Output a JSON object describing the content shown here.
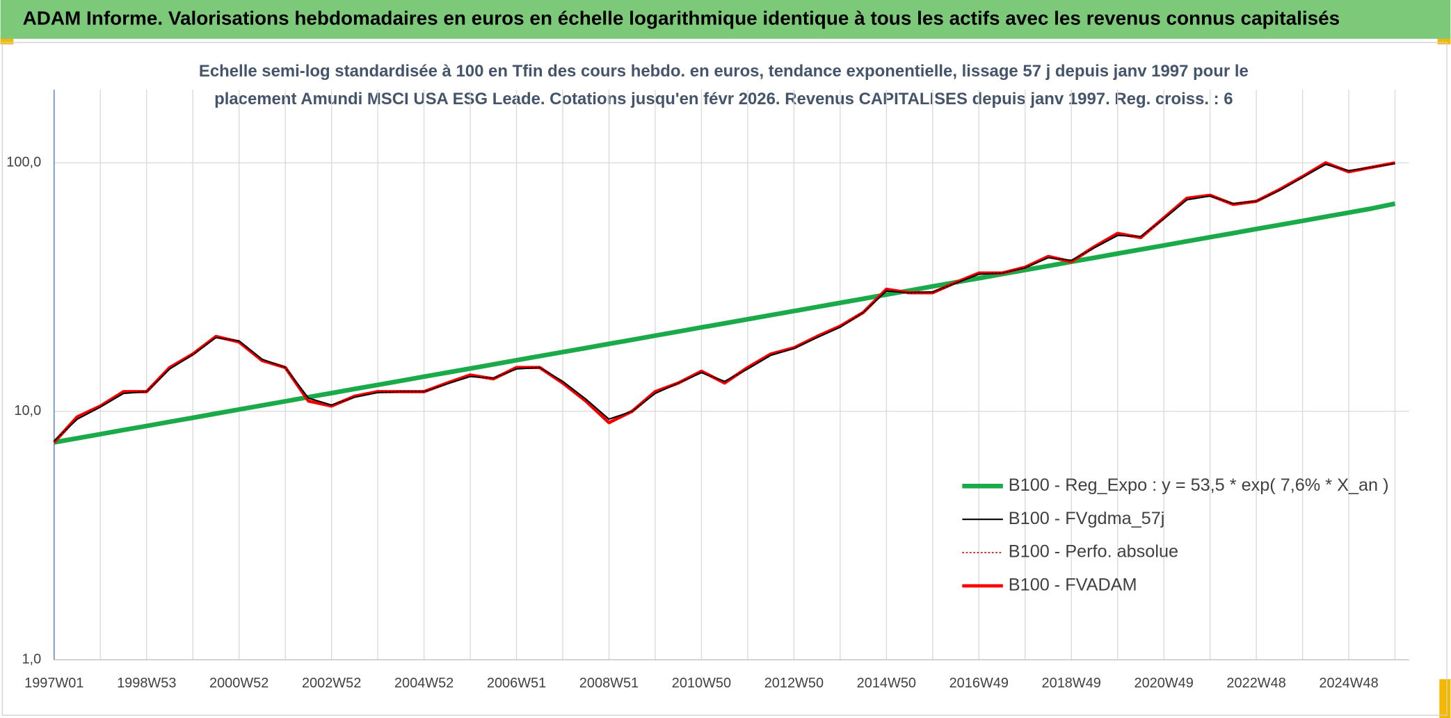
{
  "chart_data": {
    "type": "line",
    "title": "ADAM Informe. Valorisations hebdomadaires en euros en échelle logarithmique identique à tous les actifs avec les revenus connus capitalisés",
    "subtitle": [
      "Echelle semi-log standardisée à 100 en Tfin des cours hebdo. en euros, tendance exponentielle, lissage 57 j depuis janv 1997 pour le",
      "placement Amundi MSCI USA ESG Leade. Cotations jusqu'en févr 2026. Revenus CAPITALISES depuis janv 1997. Reg. croiss. : 6"
    ],
    "categories": [
      "1997W01",
      null,
      null,
      null,
      "1998W53",
      null,
      null,
      null,
      "2000W52",
      null,
      null,
      null,
      "2002W52",
      null,
      null,
      null,
      "2004W52",
      null,
      null,
      null,
      "2006W51",
      null,
      null,
      null,
      "2008W51",
      null,
      null,
      null,
      "2010W50",
      null,
      null,
      null,
      "2012W50",
      null,
      null,
      null,
      "2014W50",
      null,
      null,
      null,
      "2016W49",
      null,
      null,
      null,
      "2018W49",
      null,
      null,
      null,
      "2020W49",
      null,
      null,
      null,
      "2022W48",
      null,
      null,
      null,
      "2024W48",
      null,
      null
    ],
    "log_scale": true,
    "ylim": [
      1,
      197
    ],
    "yticks": [
      {
        "value": 1,
        "label": "1,0"
      },
      {
        "value": 10,
        "label": "10,0"
      },
      {
        "value": 100,
        "label": "100,0"
      }
    ],
    "grid": true,
    "legend": "lower right",
    "series": [
      {
        "name": "B100 - Reg_Expo : y = 53,5 * exp( 7,6% *  X_an )",
        "color": "#1aaa4a",
        "style": "solid",
        "values": [
          7.5,
          7.79,
          8.09,
          8.41,
          8.73,
          9.07,
          9.42,
          9.79,
          10.17,
          10.56,
          10.97,
          11.4,
          11.84,
          12.3,
          12.77,
          13.27,
          13.78,
          14.32,
          14.87,
          15.45,
          16.05,
          16.67,
          17.31,
          17.98,
          18.68,
          19.4,
          20.16,
          20.94,
          21.75,
          22.59,
          23.47,
          24.38,
          25.32,
          26.3,
          27.32,
          28.38,
          29.48,
          30.62,
          31.81,
          33.04,
          34.32,
          35.65,
          37.03,
          38.46,
          39.95,
          41.5,
          43.11,
          44.78,
          46.51,
          48.31,
          50.18,
          52.13,
          54.15,
          56.24,
          58.42,
          60.69,
          63.04,
          65.48,
          68.5
        ]
      },
      {
        "name": "B100 - FVgdma_57j",
        "color": "#000000",
        "style": "solid",
        "values": [
          7.6,
          9.3,
          10.4,
          11.8,
          12,
          14.8,
          16.9,
          19.8,
          19.2,
          16.2,
          15,
          11.3,
          10.6,
          11.4,
          11.9,
          12,
          12,
          12.9,
          13.8,
          13.6,
          14.8,
          15,
          13.2,
          11.2,
          9.3,
          10,
          11.8,
          13,
          14.3,
          13.2,
          14.8,
          16.8,
          17.9,
          19.8,
          21.8,
          25,
          30.5,
          30,
          30.2,
          32.8,
          35.6,
          36,
          37.8,
          41.5,
          40.5,
          45.5,
          51,
          50.5,
          59.5,
          71,
          73.5,
          68.5,
          70,
          77.5,
          87.5,
          98.5,
          93,
          96,
          99.5
        ]
      },
      {
        "name": "B100 - Perfo. absolue",
        "color": "#c00000",
        "style": "dotted",
        "values": [
          7.5,
          9.5,
          10.5,
          12,
          12,
          15,
          17,
          20,
          19,
          16,
          15,
          11,
          10.5,
          11.5,
          12,
          12,
          12,
          13,
          14,
          13.5,
          15,
          15,
          13,
          11,
          9,
          10,
          12,
          13,
          14.5,
          13,
          15,
          17,
          18,
          20,
          22,
          25,
          31,
          30,
          30,
          33,
          36,
          36,
          38,
          42,
          40,
          46,
          52,
          50,
          60,
          72,
          74,
          68,
          70,
          78,
          88,
          100,
          92,
          96,
          100
        ]
      },
      {
        "name": "B100 - FVADAM",
        "color": "#ff0000",
        "style": "thick",
        "values": [
          7.5,
          9.5,
          10.5,
          12,
          12,
          15,
          17,
          20,
          19,
          16,
          15,
          11,
          10.5,
          11.5,
          12,
          12,
          12,
          13,
          14,
          13.5,
          15,
          15,
          13,
          11,
          9,
          10,
          12,
          13,
          14.5,
          13,
          15,
          17,
          18,
          20,
          22,
          25,
          31,
          30,
          30,
          33,
          36,
          36,
          38,
          42,
          40,
          46,
          52,
          50,
          60,
          72,
          74,
          68,
          70,
          78,
          88,
          100,
          92,
          96,
          100
        ]
      }
    ]
  }
}
